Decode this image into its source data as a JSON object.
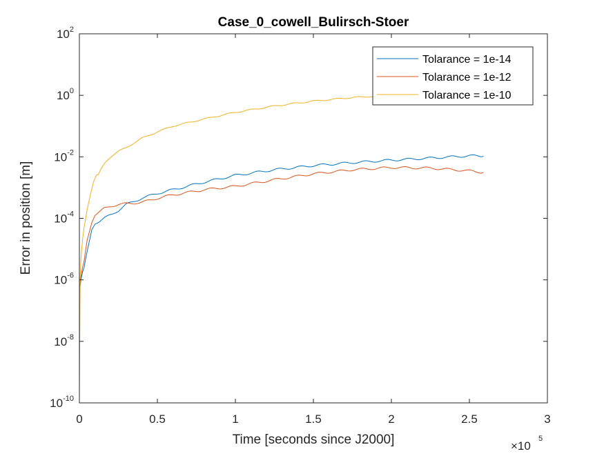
{
  "chart_data": {
    "type": "line",
    "title": "Case_0_cowell_Bulirsch-Stoer",
    "xlabel": "Time [seconds since J2000]",
    "ylabel": "Error in position [m]",
    "xlim": [
      0,
      300000
    ],
    "ylim": [
      1e-10,
      100
    ],
    "yscale": "log",
    "x_multiplier_label": "×10",
    "x_multiplier_exponent": "5",
    "x_ticks": [
      0,
      50000,
      100000,
      150000,
      200000,
      250000,
      300000
    ],
    "x_tick_labels": [
      "0",
      "0.5",
      "1",
      "1.5",
      "2",
      "2.5",
      "3"
    ],
    "y_ticks": [
      {
        "value": 1e-10,
        "base": "10",
        "exp": "-10"
      },
      {
        "value": 1e-08,
        "base": "10",
        "exp": "-8"
      },
      {
        "value": 1e-06,
        "base": "10",
        "exp": "-6"
      },
      {
        "value": 0.0001,
        "base": "10",
        "exp": "-4"
      },
      {
        "value": 0.01,
        "base": "10",
        "exp": "-2"
      },
      {
        "value": 1,
        "base": "10",
        "exp": "0"
      },
      {
        "value": 100,
        "base": "10",
        "exp": "2"
      }
    ],
    "legend_position": "top-right",
    "grid": false,
    "series": [
      {
        "name": "Tolarance = 1e-14",
        "color": "#0072BD",
        "x": [
          0,
          1000,
          2000,
          3000,
          5000,
          8000,
          10000,
          13000,
          16000,
          20000,
          25000,
          30000,
          40000,
          50000,
          60000,
          80000,
          100000,
          125000,
          150000,
          175000,
          200000,
          225000,
          250000,
          259000
        ],
        "y": [
          4e-07,
          1e-06,
          1.8e-06,
          2.5e-06,
          8e-06,
          4.5e-05,
          7e-05,
          8e-05,
          0.0001,
          0.00013,
          0.00018,
          0.00028,
          0.00045,
          0.00065,
          0.00085,
          0.0015,
          0.0025,
          0.0038,
          0.0052,
          0.0065,
          0.0078,
          0.0091,
          0.0108,
          0.0105
        ]
      },
      {
        "name": "Tolarance = 1e-12",
        "color": "#D95319",
        "x": [
          0,
          1000,
          2000,
          3000,
          5000,
          8000,
          10000,
          13000,
          16000,
          20000,
          25000,
          30000,
          40000,
          50000,
          60000,
          80000,
          100000,
          125000,
          150000,
          175000,
          200000,
          225000,
          250000,
          259000
        ],
        "y": [
          4e-07,
          1.2e-06,
          2.5e-06,
          4e-06,
          2e-05,
          8e-05,
          0.00013,
          0.00016,
          0.00021,
          0.00025,
          0.00028,
          0.0003,
          0.00033,
          0.00045,
          0.00058,
          0.00085,
          0.0011,
          0.0018,
          0.0028,
          0.0038,
          0.0045,
          0.0043,
          0.0035,
          0.0031
        ]
      },
      {
        "name": "Tolarance = 1e-10",
        "color": "#EDB120",
        "x": [
          0,
          500,
          1000,
          2000,
          3000,
          5000,
          7000,
          9000,
          10000,
          11000,
          12000,
          14000,
          16000,
          18000,
          20000,
          25000,
          30000,
          40000,
          50000,
          60000,
          80000,
          100000,
          125000,
          150000,
          175000,
          200000,
          210000
        ],
        "y": [
          1e-10,
          1e-06,
          5e-06,
          2e-05,
          5e-05,
          0.0002,
          0.0006,
          0.0015,
          0.002,
          0.0025,
          0.0025,
          0.004,
          0.006,
          0.008,
          0.01,
          0.015,
          0.02,
          0.04,
          0.065,
          0.1,
          0.17,
          0.28,
          0.45,
          0.65,
          0.85,
          1.0,
          1.05
        ]
      }
    ]
  }
}
